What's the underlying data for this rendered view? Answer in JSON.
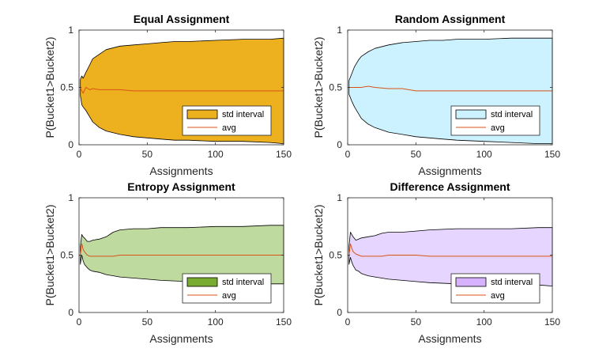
{
  "chart_data": [
    {
      "type": "area",
      "title": "Equal Assignment",
      "xlabel": "Assignments",
      "ylabel": "P(Bucket1>Bucket2)",
      "xlim": [
        0,
        150
      ],
      "ylim": [
        0,
        1
      ],
      "xticks": [
        0,
        50,
        100,
        150
      ],
      "yticks": [
        0,
        0.5,
        1
      ],
      "x": [
        1,
        2,
        3,
        5,
        8,
        10,
        15,
        20,
        30,
        40,
        50,
        60,
        70,
        80,
        100,
        120,
        140,
        150
      ],
      "series": [
        {
          "name": "std interval",
          "color": "#EDB120",
          "edge_color": "#000000",
          "upper": [
            0.57,
            0.6,
            0.58,
            0.63,
            0.7,
            0.75,
            0.79,
            0.83,
            0.86,
            0.87,
            0.88,
            0.89,
            0.9,
            0.9,
            0.91,
            0.92,
            0.92,
            0.93
          ],
          "lower": [
            0.43,
            0.35,
            0.33,
            0.3,
            0.24,
            0.2,
            0.15,
            0.12,
            0.09,
            0.07,
            0.06,
            0.05,
            0.04,
            0.04,
            0.03,
            0.03,
            0.02,
            0.01
          ]
        },
        {
          "name": "avg",
          "color": "#D95319",
          "values": [
            0.5,
            0.47,
            0.45,
            0.5,
            0.48,
            0.49,
            0.48,
            0.48,
            0.48,
            0.47,
            0.47,
            0.47,
            0.47,
            0.47,
            0.47,
            0.47,
            0.47,
            0.47
          ]
        }
      ],
      "legend": "bottom-right"
    },
    {
      "type": "area",
      "title": "Random Assignment",
      "xlabel": "Assignments",
      "ylabel": "P(Bucket1>Bucket2)",
      "xlim": [
        0,
        150
      ],
      "ylim": [
        0,
        1
      ],
      "xticks": [
        0,
        50,
        100,
        150
      ],
      "yticks": [
        0,
        0.5,
        1
      ],
      "x": [
        1,
        3,
        5,
        8,
        10,
        15,
        20,
        30,
        40,
        50,
        60,
        70,
        80,
        100,
        120,
        140,
        150
      ],
      "series": [
        {
          "name": "std interval",
          "color": "#CCF2FF",
          "edge_color": "#000000",
          "upper": [
            0.56,
            0.62,
            0.68,
            0.74,
            0.77,
            0.81,
            0.84,
            0.87,
            0.89,
            0.9,
            0.91,
            0.91,
            0.92,
            0.92,
            0.93,
            0.93,
            0.93
          ],
          "lower": [
            0.44,
            0.38,
            0.33,
            0.27,
            0.23,
            0.18,
            0.15,
            0.11,
            0.09,
            0.07,
            0.06,
            0.05,
            0.04,
            0.03,
            0.02,
            0.01,
            0.01
          ]
        },
        {
          "name": "avg",
          "color": "#D95319",
          "values": [
            0.5,
            0.5,
            0.5,
            0.5,
            0.5,
            0.51,
            0.5,
            0.49,
            0.49,
            0.47,
            0.47,
            0.47,
            0.47,
            0.47,
            0.47,
            0.47,
            0.47
          ]
        }
      ],
      "legend": "bottom-right"
    },
    {
      "type": "area",
      "title": "Entropy Assignment",
      "xlabel": "Assignments",
      "ylabel": "P(Bucket1>Bucket2)",
      "xlim": [
        0,
        150
      ],
      "ylim": [
        0,
        1
      ],
      "xticks": [
        0,
        50,
        100,
        150
      ],
      "yticks": [
        0,
        0.5,
        1
      ],
      "x": [
        1,
        2,
        3,
        4,
        6,
        8,
        10,
        15,
        20,
        25,
        30,
        40,
        50,
        60,
        80,
        100,
        120,
        140,
        150
      ],
      "series": [
        {
          "name": "std interval",
          "color": "#BEDA9E",
          "edge_color": "#000000",
          "upper": [
            0.58,
            0.68,
            0.66,
            0.65,
            0.62,
            0.62,
            0.63,
            0.64,
            0.66,
            0.7,
            0.72,
            0.73,
            0.73,
            0.74,
            0.74,
            0.75,
            0.75,
            0.76,
            0.76
          ],
          "lower": [
            0.42,
            0.5,
            0.45,
            0.42,
            0.39,
            0.37,
            0.36,
            0.35,
            0.33,
            0.32,
            0.31,
            0.3,
            0.29,
            0.28,
            0.27,
            0.27,
            0.26,
            0.25,
            0.25
          ]
        },
        {
          "name": "avg",
          "color": "#D95319",
          "values": [
            0.5,
            0.6,
            0.55,
            0.53,
            0.5,
            0.49,
            0.49,
            0.49,
            0.49,
            0.49,
            0.5,
            0.5,
            0.5,
            0.5,
            0.5,
            0.5,
            0.5,
            0.5,
            0.5
          ]
        }
      ],
      "legend": "bottom-right",
      "legend_swatch_color": "#77AC30"
    },
    {
      "type": "area",
      "title": "Difference Assignment",
      "xlabel": "Assignments",
      "ylabel": "P(Bucket1>Bucket2)",
      "xlim": [
        0,
        150
      ],
      "ylim": [
        0,
        1
      ],
      "xticks": [
        0,
        50,
        100,
        150
      ],
      "yticks": [
        0,
        0.5,
        1
      ],
      "x": [
        1,
        2,
        3,
        4,
        6,
        8,
        10,
        15,
        20,
        25,
        30,
        40,
        50,
        60,
        80,
        100,
        120,
        140,
        150
      ],
      "series": [
        {
          "name": "std interval",
          "color": "#E5D5FF",
          "edge_color": "#000000",
          "upper": [
            0.58,
            0.7,
            0.68,
            0.66,
            0.63,
            0.64,
            0.65,
            0.66,
            0.67,
            0.69,
            0.7,
            0.7,
            0.71,
            0.72,
            0.73,
            0.73,
            0.73,
            0.74,
            0.74
          ],
          "lower": [
            0.42,
            0.48,
            0.44,
            0.41,
            0.37,
            0.36,
            0.34,
            0.32,
            0.31,
            0.3,
            0.29,
            0.28,
            0.27,
            0.26,
            0.25,
            0.25,
            0.24,
            0.24,
            0.23
          ]
        },
        {
          "name": "avg",
          "color": "#D95319",
          "values": [
            0.5,
            0.6,
            0.56,
            0.53,
            0.51,
            0.5,
            0.49,
            0.49,
            0.49,
            0.49,
            0.5,
            0.5,
            0.5,
            0.49,
            0.49,
            0.49,
            0.49,
            0.49,
            0.49
          ]
        }
      ],
      "legend": "bottom-right",
      "legend_swatch_color": "#D7B3FF"
    }
  ]
}
